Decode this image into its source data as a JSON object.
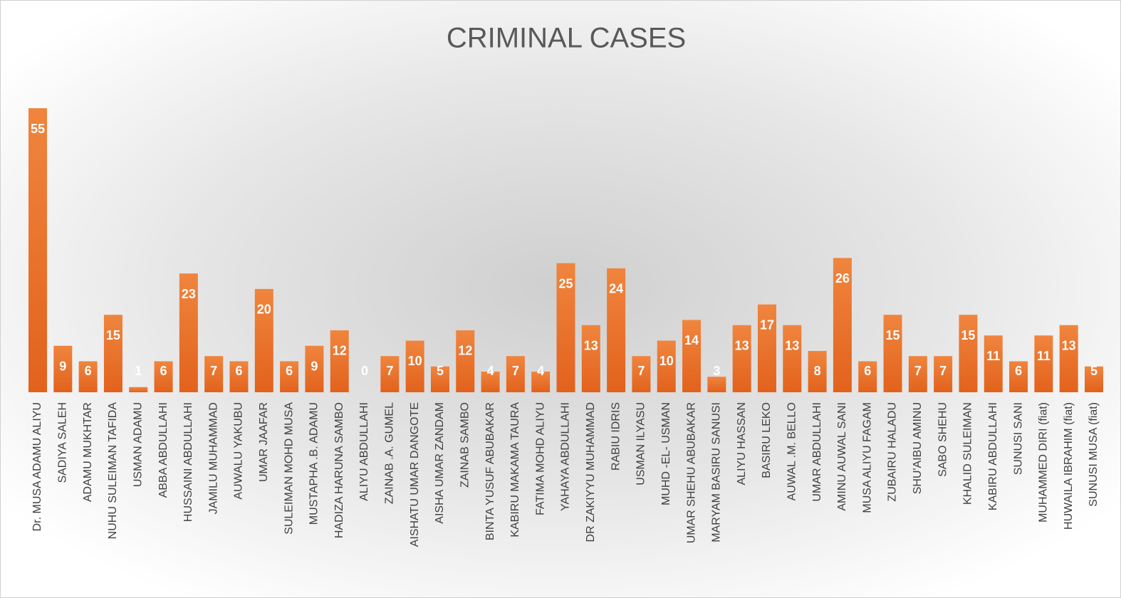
{
  "chart_data": {
    "type": "bar",
    "title": "CRIMINAL CASES",
    "color": "#ed7d31",
    "categories": [
      "Dr. MUSA ADAMU ALIYU",
      "SADIYA SALEH",
      "ADAMU MUKHTAR",
      "NUHU SULEIMAN TAFIDA",
      "USMAN ADAMU",
      "ABBA ABDULLAHI",
      "HUSSAINI ABDULLAHI",
      "JAMILU MUHAMMAD",
      "AUWALU YAKUBU",
      "UMAR JAAFAR",
      "SULEIMAN MOHD MUSA",
      "MUSTAPHA .B. ADAMU",
      "HADIZA HARUNA SAMBO",
      "ALIYU ABDULLAHI",
      "ZAINAB .A. GUMEL",
      "AISHATU UMAR DANGOTE",
      "AISHA UMAR ZANDAM",
      "ZAINAB SAMBO",
      "BINTA YUSUF ABUBAKAR",
      "KABIRU MAKAMA TAURA",
      "FATIMA MOHD ALIYU",
      "YAHAYA ABDULLAHI",
      "DR ZAKIYYU MUHAMMAD",
      "RABIU IDRIS",
      "USMAN ILYASU",
      "MUHD -EL- USMAN",
      "UMAR SHEHU ABUBAKAR",
      "MARYAM BASIRU SANUSI",
      "ALIYU HASSAN",
      "BASIRU LEKO",
      "AUWAL .M. BELLO",
      "UMAR ABDULLAHI",
      "AMINU AUWAL SANI",
      "MUSA ALIYU FAGAM",
      "ZUBAIRU HALADU",
      "SHU'AIBU AMINU",
      "SABO SHEHU",
      "KHALID SULEIMAN",
      "KABIRU ABDULLAHI",
      "SUNUSI SANI",
      "MUHAMMED DIRI (fiat)",
      "HUWAILA IBRAHIM (fiat)",
      "SUNUSI MUSA (fiat)"
    ],
    "values": [
      55,
      9,
      6,
      15,
      1,
      6,
      23,
      7,
      6,
      20,
      6,
      9,
      12,
      0,
      7,
      10,
      5,
      12,
      4,
      7,
      4,
      25,
      13,
      24,
      7,
      10,
      14,
      3,
      13,
      17,
      13,
      8,
      26,
      6,
      15,
      7,
      7,
      15,
      11,
      6,
      11,
      13,
      5
    ]
  }
}
